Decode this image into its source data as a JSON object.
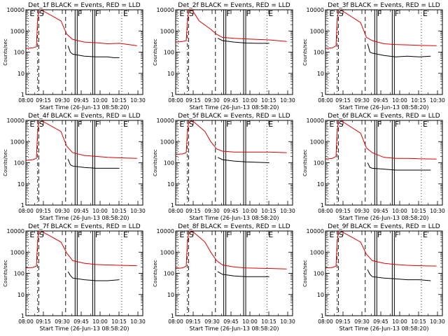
{
  "figure": {
    "start_time_label": "Start Time (26-Jun-13 08:58:20)",
    "y_axis_label": "Counts/sec",
    "x_tick_labels": [
      "08:00",
      "09:15",
      "09:30",
      "09:45",
      "10:00",
      "10:15",
      "10:30"
    ],
    "y_tick_labels": [
      "1",
      "10",
      "100",
      "1000",
      "10000"
    ],
    "colors": {
      "events": "#000000",
      "lld": "#e00000",
      "axes": "#000000"
    }
  },
  "chart_data": [
    {
      "type": "line",
      "title": "Det_1f BLACK = Events, RED = LLD",
      "xlabel": "Start Time (26-Jun-13 08:58:20)",
      "ylabel": "Counts/sec",
      "x_range": [
        "09:00",
        "10:40"
      ],
      "ylim": [
        1,
        10000
      ],
      "yscale": "log",
      "markers": [
        {
          "label": "E",
          "time": "09:02"
        },
        {
          "label": "S",
          "time": "09:10"
        },
        {
          "label": "F",
          "time": "09:43"
        },
        {
          "label": "F",
          "time": "09:58"
        },
        {
          "label": "E",
          "time": "10:22"
        }
      ],
      "dashed_lines": [
        "09:11",
        "09:34"
      ],
      "series": [
        {
          "color": "red",
          "x": [
            "09:00",
            "09:06",
            "09:09",
            "09:10",
            "09:11",
            "09:13",
            "09:30",
            "09:35",
            "09:40",
            "09:50",
            "10:00",
            "10:10",
            "10:20",
            "10:30",
            "10:35"
          ],
          "values": [
            150,
            160,
            180,
            3000,
            10000,
            10000,
            3000,
            700,
            400,
            300,
            280,
            250,
            260,
            220,
            200
          ]
        },
        {
          "color": "black",
          "x": [
            "09:36",
            "09:38",
            "09:40",
            "09:50",
            "10:00",
            "10:10",
            "10:15",
            "10:20"
          ],
          "values": [
            200,
            100,
            80,
            65,
            60,
            60,
            55,
            55
          ]
        }
      ]
    },
    {
      "type": "line",
      "title": "Det_2f BLACK = Events, RED = LLD",
      "xlabel": "Start Time (26-Jun-13 08:58:20)",
      "ylabel": "Counts/sec",
      "x_range": [
        "09:00",
        "10:40"
      ],
      "ylim": [
        1,
        10000
      ],
      "yscale": "log",
      "markers": [
        {
          "label": "E",
          "time": "09:02"
        },
        {
          "label": "S",
          "time": "09:10"
        },
        {
          "label": "F",
          "time": "09:42"
        },
        {
          "label": "F",
          "time": "09:59"
        },
        {
          "label": "E",
          "time": "10:18"
        }
      ],
      "dashed_lines": [
        "09:11",
        "09:34"
      ],
      "series": [
        {
          "color": "red",
          "x": [
            "09:00",
            "09:06",
            "09:09",
            "09:10",
            "09:11",
            "09:14",
            "09:20",
            "09:30",
            "09:35",
            "09:40",
            "09:50",
            "10:00",
            "10:20",
            "10:35"
          ],
          "values": [
            300,
            320,
            350,
            2500,
            9000,
            10000,
            3000,
            1200,
            700,
            500,
            450,
            420,
            380,
            320
          ]
        },
        {
          "color": "black",
          "x": [
            "09:36",
            "09:40",
            "09:50",
            "10:00",
            "10:10",
            "10:20"
          ],
          "values": [
            450,
            350,
            300,
            270,
            260,
            260
          ]
        }
      ]
    },
    {
      "type": "line",
      "title": "Det_3f BLACK = Events, RED = LLD",
      "xlabel": "Start Time (26-Jun-13 08:58:20)",
      "ylabel": "Counts/sec",
      "x_range": [
        "09:00",
        "10:40"
      ],
      "ylim": [
        1,
        10000
      ],
      "yscale": "log",
      "markers": [
        {
          "label": "E",
          "time": "09:02"
        },
        {
          "label": "S",
          "time": "09:10"
        },
        {
          "label": "F",
          "time": "09:43"
        },
        {
          "label": "F",
          "time": "09:58"
        },
        {
          "label": "E",
          "time": "10:22"
        }
      ],
      "dashed_lines": [
        "09:11",
        "09:34"
      ],
      "series": [
        {
          "color": "red",
          "x": [
            "09:00",
            "09:06",
            "09:09",
            "09:10",
            "09:11",
            "09:13",
            "09:30",
            "09:35",
            "09:40",
            "09:50",
            "10:00",
            "10:10",
            "10:20",
            "10:35"
          ],
          "values": [
            150,
            160,
            200,
            3000,
            10000,
            10000,
            2500,
            500,
            350,
            250,
            230,
            220,
            210,
            200
          ]
        },
        {
          "color": "black",
          "x": [
            "09:36",
            "09:38",
            "09:40",
            "09:50",
            "10:00",
            "10:10",
            "10:20",
            "10:30"
          ],
          "values": [
            250,
            100,
            90,
            70,
            60,
            65,
            60,
            65
          ]
        }
      ]
    },
    {
      "type": "line",
      "title": "Det_4f BLACK = Events, RED = LLD",
      "xlabel": "Start Time (26-Jun-13 08:58:20)",
      "ylabel": "Counts/sec",
      "x_range": [
        "09:00",
        "10:40"
      ],
      "ylim": [
        1,
        10000
      ],
      "yscale": "log",
      "markers": [
        {
          "label": "E",
          "time": "09:02"
        },
        {
          "label": "S",
          "time": "09:10"
        },
        {
          "label": "F",
          "time": "09:43"
        },
        {
          "label": "F",
          "time": "09:58"
        },
        {
          "label": "E",
          "time": "10:22"
        }
      ],
      "dashed_lines": [
        "09:11",
        "09:34"
      ],
      "series": [
        {
          "color": "red",
          "x": [
            "09:00",
            "09:06",
            "09:09",
            "09:10",
            "09:11",
            "09:13",
            "09:30",
            "09:35",
            "09:40",
            "09:50",
            "10:00",
            "10:10",
            "10:20",
            "10:35"
          ],
          "values": [
            130,
            140,
            160,
            2500,
            10000,
            10000,
            3000,
            600,
            300,
            220,
            200,
            180,
            170,
            160
          ]
        },
        {
          "color": "black",
          "x": [
            "09:36",
            "09:38",
            "09:40",
            "09:50",
            "10:00",
            "10:10",
            "10:20"
          ],
          "values": [
            150,
            80,
            70,
            60,
            55,
            55,
            55
          ]
        }
      ]
    },
    {
      "type": "line",
      "title": "Det_5f BLACK = Events, RED = LLD",
      "xlabel": "Start Time (26-Jun-13 08:58:20)",
      "ylabel": "Counts/sec",
      "x_range": [
        "09:00",
        "10:40"
      ],
      "ylim": [
        1,
        10000
      ],
      "yscale": "log",
      "markers": [
        {
          "label": "E",
          "time": "09:02"
        },
        {
          "label": "S",
          "time": "09:10"
        },
        {
          "label": "F",
          "time": "09:42"
        },
        {
          "label": "F",
          "time": "09:59"
        },
        {
          "label": "E",
          "time": "10:18"
        }
      ],
      "dashed_lines": [
        "09:11",
        "09:34"
      ],
      "series": [
        {
          "color": "red",
          "x": [
            "09:00",
            "09:06",
            "09:09",
            "09:10",
            "09:11",
            "09:14",
            "09:25",
            "09:30",
            "09:35",
            "09:40",
            "09:50",
            "10:00",
            "10:20",
            "10:35"
          ],
          "values": [
            250,
            260,
            300,
            2500,
            8000,
            10000,
            3000,
            1000,
            450,
            350,
            320,
            320,
            320,
            300
          ]
        },
        {
          "color": "black",
          "x": [
            "09:36",
            "09:40",
            "09:50",
            "10:00",
            "10:10",
            "10:20"
          ],
          "values": [
            180,
            140,
            120,
            110,
            105,
            100
          ]
        }
      ]
    },
    {
      "type": "line",
      "title": "Det_6f BLACK = Events, RED = LLD",
      "xlabel": "Start Time (26-Jun-13 08:58:20)",
      "ylabel": "Counts/sec",
      "x_range": [
        "09:00",
        "10:40"
      ],
      "ylim": [
        1,
        10000
      ],
      "yscale": "log",
      "markers": [
        {
          "label": "E",
          "time": "09:02"
        },
        {
          "label": "S",
          "time": "09:10"
        },
        {
          "label": "F",
          "time": "09:43"
        },
        {
          "label": "F",
          "time": "09:58"
        },
        {
          "label": "E",
          "time": "10:22"
        }
      ],
      "dashed_lines": [
        "09:11",
        "09:34"
      ],
      "series": [
        {
          "color": "red",
          "x": [
            "09:00",
            "09:06",
            "09:09",
            "09:10",
            "09:11",
            "09:13",
            "09:30",
            "09:35",
            "09:40",
            "09:50",
            "10:00",
            "10:10",
            "10:20",
            "10:35"
          ],
          "values": [
            150,
            160,
            200,
            3000,
            10000,
            10000,
            2500,
            500,
            300,
            180,
            160,
            160,
            155,
            150
          ]
        },
        {
          "color": "black",
          "x": [
            "09:36",
            "09:38",
            "09:40",
            "09:50",
            "10:00",
            "10:10",
            "10:20",
            "10:30"
          ],
          "values": [
            100,
            60,
            55,
            50,
            45,
            45,
            45,
            45
          ]
        }
      ]
    },
    {
      "type": "line",
      "title": "Det_7f BLACK = Events, RED = LLD",
      "xlabel": "Start Time (26-Jun-13 08:58:20)",
      "ylabel": "Counts/sec",
      "x_range": [
        "09:00",
        "10:40"
      ],
      "ylim": [
        1,
        10000
      ],
      "yscale": "log",
      "markers": [
        {
          "label": "E",
          "time": "09:02"
        },
        {
          "label": "S",
          "time": "09:10"
        },
        {
          "label": "F",
          "time": "09:43"
        },
        {
          "label": "F",
          "time": "09:58"
        },
        {
          "label": "E",
          "time": "10:22"
        }
      ],
      "dashed_lines": [
        "09:11",
        "09:34"
      ],
      "series": [
        {
          "color": "red",
          "x": [
            "09:00",
            "09:06",
            "09:09",
            "09:10",
            "09:11",
            "09:13",
            "09:30",
            "09:35",
            "09:40",
            "09:50",
            "10:00",
            "10:10",
            "10:20",
            "10:35"
          ],
          "values": [
            180,
            190,
            220,
            3000,
            10000,
            10000,
            3000,
            900,
            400,
            300,
            260,
            250,
            240,
            230
          ]
        },
        {
          "color": "black",
          "x": [
            "09:36",
            "09:38",
            "09:40",
            "09:50",
            "10:00",
            "10:10",
            "10:20"
          ],
          "values": [
            120,
            80,
            60,
            50,
            45,
            45,
            50
          ]
        }
      ]
    },
    {
      "type": "line",
      "title": "Det_8f BLACK = Events, RED = LLD",
      "xlabel": "Start Time (26-Jun-13 08:58:20)",
      "ylabel": "Counts/sec",
      "x_range": [
        "09:00",
        "10:40"
      ],
      "ylim": [
        1,
        10000
      ],
      "yscale": "log",
      "markers": [
        {
          "label": "E",
          "time": "09:02"
        },
        {
          "label": "S",
          "time": "09:10"
        },
        {
          "label": "F",
          "time": "09:42"
        },
        {
          "label": "F",
          "time": "09:59"
        },
        {
          "label": "E",
          "time": "10:18"
        }
      ],
      "dashed_lines": [
        "09:11",
        "09:34"
      ],
      "series": [
        {
          "color": "red",
          "x": [
            "09:00",
            "09:06",
            "09:09",
            "09:10",
            "09:11",
            "09:14",
            "09:25",
            "09:30",
            "09:35",
            "09:40",
            "09:50",
            "10:00",
            "10:20",
            "10:35"
          ],
          "values": [
            170,
            180,
            220,
            2500,
            8000,
            10000,
            3000,
            1000,
            400,
            250,
            200,
            180,
            170,
            160
          ]
        },
        {
          "color": "black",
          "x": [
            "09:36",
            "09:40",
            "09:50",
            "10:00",
            "10:10",
            "10:20"
          ],
          "values": [
            120,
            90,
            75,
            70,
            70,
            70
          ]
        }
      ]
    },
    {
      "type": "line",
      "title": "Det_9f BLACK = Events, RED = LLD",
      "xlabel": "Start Time (26-Jun-13 08:58:20)",
      "ylabel": "Counts/sec",
      "x_range": [
        "09:00",
        "10:40"
      ],
      "ylim": [
        1,
        10000
      ],
      "yscale": "log",
      "markers": [
        {
          "label": "E",
          "time": "09:02"
        },
        {
          "label": "S",
          "time": "09:10"
        },
        {
          "label": "F",
          "time": "09:43"
        },
        {
          "label": "F",
          "time": "09:58"
        },
        {
          "label": "E",
          "time": "10:22"
        }
      ],
      "dashed_lines": [
        "09:11",
        "09:34"
      ],
      "series": [
        {
          "color": "red",
          "x": [
            "09:00",
            "09:06",
            "09:09",
            "09:10",
            "09:11",
            "09:13",
            "09:30",
            "09:35",
            "09:40",
            "09:50",
            "10:00",
            "10:10",
            "10:20",
            "10:35"
          ],
          "values": [
            180,
            190,
            220,
            3000,
            10000,
            10000,
            3000,
            800,
            400,
            300,
            260,
            240,
            230,
            220
          ]
        },
        {
          "color": "black",
          "x": [
            "09:36",
            "09:38",
            "09:40",
            "09:50",
            "10:00",
            "10:10",
            "10:20",
            "10:30"
          ],
          "values": [
            150,
            90,
            70,
            60,
            55,
            50,
            50,
            45
          ]
        }
      ]
    }
  ]
}
